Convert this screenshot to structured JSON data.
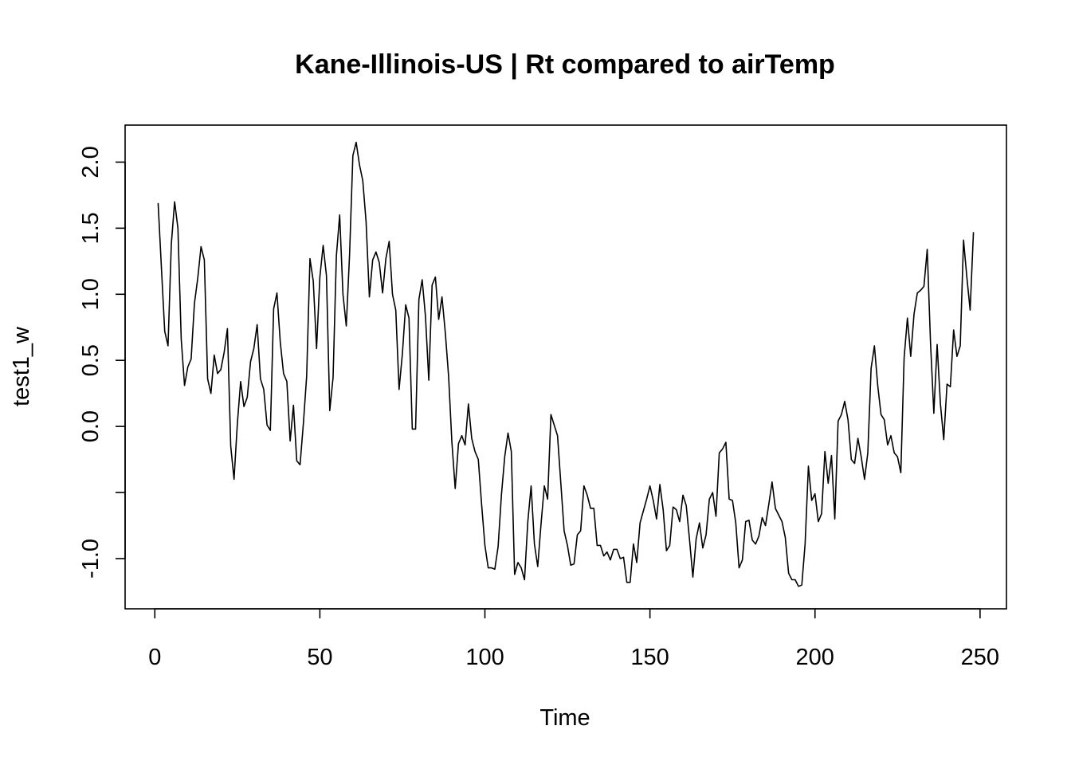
{
  "chart_data": {
    "type": "line",
    "title": "Kane-Illinois-US | Rt compared to airTemp",
    "xlabel": "Time",
    "ylabel": "test1_w",
    "xlim": [
      -9,
      258
    ],
    "ylim": [
      -1.38,
      2.28
    ],
    "x_ticks": [
      0,
      50,
      100,
      150,
      200,
      250
    ],
    "x_tick_labels": [
      "0",
      "50",
      "100",
      "150",
      "200",
      "250"
    ],
    "y_ticks": [
      -1.0,
      -0.5,
      0.0,
      0.5,
      1.0,
      1.5,
      2.0
    ],
    "y_tick_labels": [
      "-1.0",
      "",
      "0.0",
      "0.5",
      "1.0",
      "1.5",
      "2.0"
    ],
    "grid": false,
    "color": "#000000",
    "series": [
      {
        "x_start": 1,
        "x_step": 1,
        "values": [
          1.69,
          1.2,
          0.72,
          0.61,
          1.38,
          1.7,
          1.5,
          0.66,
          0.31,
          0.45,
          0.51,
          0.93,
          1.12,
          1.36,
          1.26,
          0.36,
          0.25,
          0.54,
          0.4,
          0.43,
          0.56,
          0.74,
          -0.15,
          -0.4,
          0.02,
          0.34,
          0.15,
          0.22,
          0.49,
          0.59,
          0.77,
          0.36,
          0.28,
          0.01,
          -0.03,
          0.89,
          1.01,
          0.64,
          0.4,
          0.34,
          -0.11,
          0.16,
          -0.26,
          -0.29,
          0.02,
          0.38,
          1.27,
          1.1,
          0.59,
          1.13,
          1.37,
          1.14,
          0.12,
          0.37,
          1.29,
          1.6,
          1.0,
          0.76,
          1.3,
          2.05,
          2.15,
          1.98,
          1.86,
          1.55,
          0.98,
          1.26,
          1.32,
          1.24,
          1.01,
          1.27,
          1.4,
          1.0,
          0.88,
          0.28,
          0.55,
          0.92,
          0.82,
          -0.02,
          -0.02,
          0.96,
          1.11,
          0.83,
          0.35,
          1.07,
          1.13,
          0.81,
          0.98,
          0.71,
          0.38,
          -0.12,
          -0.47,
          -0.13,
          -0.07,
          -0.14,
          0.17,
          -0.09,
          -0.19,
          -0.25,
          -0.59,
          -0.9,
          -1.07,
          -1.07,
          -1.08,
          -0.91,
          -0.52,
          -0.23,
          -0.05,
          -0.19,
          -1.12,
          -1.03,
          -1.07,
          -1.16,
          -0.72,
          -0.45,
          -0.89,
          -1.06,
          -0.74,
          -0.45,
          -0.55,
          0.09,
          0.01,
          -0.07,
          -0.43,
          -0.79,
          -0.9,
          -1.05,
          -1.04,
          -0.82,
          -0.79,
          -0.45,
          -0.52,
          -0.62,
          -0.62,
          -0.9,
          -0.9,
          -0.98,
          -0.95,
          -1.01,
          -0.93,
          -0.93,
          -1.0,
          -0.99,
          -1.18,
          -1.18,
          -0.89,
          -1.03,
          -0.73,
          -0.64,
          -0.55,
          -0.45,
          -0.56,
          -0.7,
          -0.44,
          -0.63,
          -0.94,
          -0.9,
          -0.61,
          -0.63,
          -0.72,
          -0.52,
          -0.6,
          -0.86,
          -1.14,
          -0.85,
          -0.73,
          -0.92,
          -0.82,
          -0.55,
          -0.5,
          -0.68,
          -0.2,
          -0.17,
          -0.12,
          -0.55,
          -0.56,
          -0.73,
          -1.07,
          -1.01,
          -0.72,
          -0.71,
          -0.86,
          -0.89,
          -0.83,
          -0.69,
          -0.75,
          -0.59,
          -0.42,
          -0.62,
          -0.67,
          -0.72,
          -0.84,
          -1.11,
          -1.16,
          -1.16,
          -1.21,
          -1.2,
          -0.89,
          -0.3,
          -0.56,
          -0.51,
          -0.72,
          -0.66,
          -0.19,
          -0.43,
          -0.22,
          -0.7,
          0.04,
          0.09,
          0.19,
          0.05,
          -0.25,
          -0.28,
          -0.09,
          -0.23,
          -0.4,
          -0.2,
          0.44,
          0.61,
          0.31,
          0.09,
          0.05,
          -0.14,
          -0.07,
          -0.2,
          -0.23,
          -0.35,
          0.52,
          0.82,
          0.53,
          0.85,
          1.01,
          1.03,
          1.06,
          1.34,
          0.63,
          0.1,
          0.62,
          0.17,
          -0.1,
          0.32,
          0.3,
          0.73,
          0.53,
          0.61,
          1.41,
          1.13,
          0.88,
          1.47
        ]
      }
    ]
  }
}
